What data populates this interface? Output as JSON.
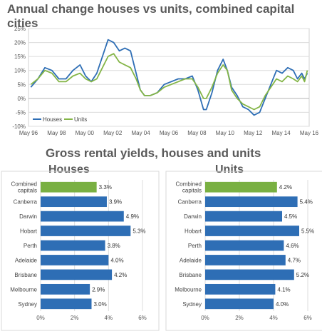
{
  "chart_data": [
    {
      "type": "line",
      "title": "Annual change houses vs units, combined capital cities",
      "x_ticks": [
        "May 96",
        "May 98",
        "May 00",
        "May 02",
        "May 04",
        "May 06",
        "May 08",
        "May 10",
        "May 12",
        "May 14",
        "May 16"
      ],
      "y_ticks": [
        "25%",
        "20%",
        "15%",
        "10%",
        "5%",
        "0%",
        "-5%",
        "-10%"
      ],
      "ylim": [
        -10,
        25
      ],
      "xlim": [
        1996.33,
        2016.33
      ],
      "legend_position": "bottom-left",
      "colors": {
        "Houses": "#2e6eb5",
        "Units": "#84b547"
      },
      "series": [
        {
          "name": "Houses",
          "x": [
            1996.5,
            1997.0,
            1997.5,
            1998.0,
            1998.5,
            1999.0,
            1999.5,
            2000.0,
            2000.4,
            2000.8,
            2001.2,
            2001.6,
            2002.0,
            2002.4,
            2002.8,
            2003.2,
            2003.6,
            2004.0,
            2004.3,
            2004.6,
            2005.0,
            2005.5,
            2006.0,
            2006.5,
            2007.0,
            2007.5,
            2008.0,
            2008.4,
            2008.8,
            2009.0,
            2009.4,
            2009.8,
            2010.2,
            2010.5,
            2010.8,
            2011.2,
            2011.6,
            2012.0,
            2012.4,
            2012.8,
            2013.2,
            2013.6,
            2014.0,
            2014.4,
            2014.8,
            2015.2,
            2015.5,
            2015.8,
            2016.0,
            2016.2
          ],
          "values": [
            4,
            7,
            11,
            10,
            7,
            7,
            10,
            12,
            8,
            6,
            9,
            15,
            21,
            20,
            17,
            18,
            17,
            9,
            3,
            1,
            1,
            2,
            5,
            6,
            7,
            7,
            8,
            3,
            -4,
            -4,
            2,
            10,
            14,
            10,
            4,
            1,
            -3,
            -4,
            -6,
            -5,
            0,
            5,
            10,
            9,
            11,
            10,
            7,
            9,
            7,
            9
          ]
        },
        {
          "name": "Units",
          "x": [
            1996.5,
            1997.0,
            1997.5,
            1998.0,
            1998.5,
            1999.0,
            1999.5,
            2000.0,
            2000.4,
            2000.8,
            2001.2,
            2001.6,
            2002.0,
            2002.4,
            2002.8,
            2003.2,
            2003.6,
            2004.0,
            2004.3,
            2004.6,
            2005.0,
            2005.5,
            2006.0,
            2006.5,
            2007.0,
            2007.5,
            2008.0,
            2008.4,
            2008.8,
            2009.0,
            2009.4,
            2009.8,
            2010.2,
            2010.5,
            2010.8,
            2011.2,
            2011.6,
            2012.0,
            2012.4,
            2012.8,
            2013.2,
            2013.6,
            2014.0,
            2014.4,
            2014.8,
            2015.2,
            2015.5,
            2015.8,
            2016.0,
            2016.2
          ],
          "values": [
            5,
            7,
            10,
            9,
            6,
            6,
            8,
            9,
            7,
            6,
            7,
            11,
            15,
            16,
            13,
            12,
            11,
            7,
            3,
            1,
            1,
            2,
            4,
            5,
            6,
            7,
            7,
            4,
            0,
            0,
            4,
            9,
            12,
            10,
            3,
            0,
            -2,
            -3,
            -4,
            -3,
            1,
            4,
            7,
            6,
            8,
            7,
            6,
            8,
            6,
            10
          ]
        }
      ]
    },
    {
      "type": "bar",
      "orientation": "horizontal",
      "title": "Houses",
      "categories": [
        "Combined\ncapitals",
        "Canberra",
        "Darwin",
        "Hobart",
        "Perth",
        "Adelaide",
        "Brisbane",
        "Melbourne",
        "Sydney"
      ],
      "values": [
        3.3,
        3.9,
        4.9,
        5.3,
        3.8,
        4.0,
        4.2,
        2.9,
        3.0
      ],
      "value_labels": [
        "3.3%",
        "3.9%",
        "4.9%",
        "5.3%",
        "3.8%",
        "4.0%",
        "4.2%",
        "2.9%",
        "3.0%"
      ],
      "xlim": [
        0,
        6
      ],
      "x_ticks": [
        "0%",
        "2%",
        "4%",
        "6%"
      ],
      "colors": {
        "highlight": "#79b042",
        "default": "#2e6eb5"
      }
    },
    {
      "type": "bar",
      "orientation": "horizontal",
      "title": "Units",
      "categories": [
        "Combined\ncapitals",
        "Canberra",
        "Darwin",
        "Hobart",
        "Perth",
        "Adelaide",
        "Brisbane",
        "Melbourne",
        "Sydney"
      ],
      "values": [
        4.2,
        5.4,
        4.5,
        5.5,
        4.6,
        4.7,
        5.2,
        4.1,
        4.0
      ],
      "value_labels": [
        "4.2%",
        "5.4%",
        "4.5%",
        "5.5%",
        "4.6%",
        "4.7%",
        "5.2%",
        "4.1%",
        "4.0%"
      ],
      "xlim": [
        0,
        6
      ],
      "x_ticks": [
        "0%",
        "2%",
        "4%",
        "6%"
      ],
      "colors": {
        "highlight": "#79b042",
        "default": "#2e6eb5"
      }
    }
  ],
  "section_title": "Gross rental yields, houses and units"
}
